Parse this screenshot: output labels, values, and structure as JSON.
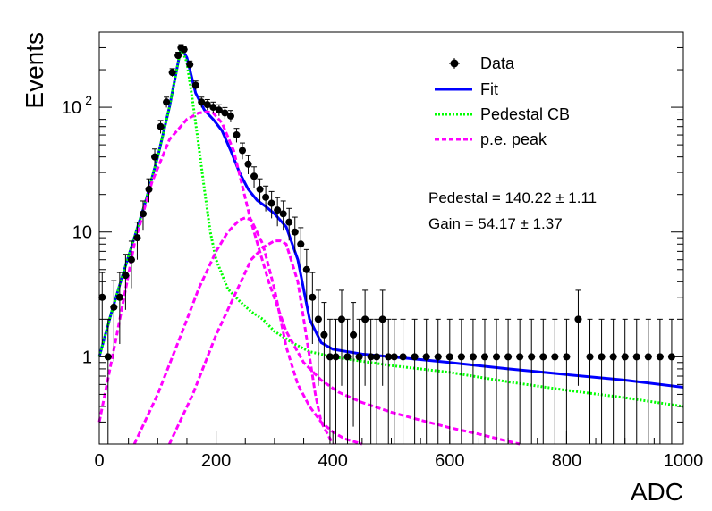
{
  "chart_data": {
    "type": "scatter",
    "title": "",
    "xlabel": "ADC",
    "ylabel": "Events",
    "xlim": [
      0,
      1000
    ],
    "ylim": [
      0.2,
      400
    ],
    "yscale": "log",
    "x_ticks": [
      "0",
      "200",
      "400",
      "600",
      "800",
      "1000"
    ],
    "y_ticks": [
      {
        "value": 1,
        "label": "1"
      },
      {
        "value": 10,
        "label": "10"
      },
      {
        "value": 100,
        "label": "10",
        "exponent": "2"
      }
    ],
    "legend": {
      "placement": "top-right",
      "entries": [
        {
          "label": "Data",
          "style": "marker",
          "color": "#000000"
        },
        {
          "label": "Fit",
          "style": "solid",
          "color": "#0000ff"
        },
        {
          "label": "Pedestal CB",
          "style": "dotted",
          "color": "#00ff00"
        },
        {
          "label": "p.e. peak",
          "style": "dashed",
          "color": "#ff00ff"
        }
      ]
    },
    "annotations": [
      {
        "name": "Pedestal",
        "text": "Pedestal = 140.22 ± 1.11"
      },
      {
        "name": "Gain",
        "text": "Gain = 54.17 ± 1.37"
      }
    ],
    "series": [
      {
        "name": "Data",
        "marker": "circle",
        "color": "#000000",
        "x": [
          5,
          15,
          25,
          35,
          45,
          55,
          65,
          75,
          85,
          95,
          105,
          115,
          125,
          135,
          140,
          145,
          155,
          165,
          175,
          185,
          195,
          205,
          215,
          225,
          235,
          245,
          255,
          265,
          275,
          285,
          295,
          305,
          315,
          325,
          335,
          345,
          355,
          365,
          375,
          385,
          395,
          405,
          415,
          425,
          435,
          445,
          455,
          465,
          475,
          485,
          495,
          505,
          520,
          540,
          560,
          580,
          600,
          620,
          640,
          660,
          680,
          700,
          720,
          740,
          760,
          780,
          800,
          820,
          840,
          860,
          880,
          900,
          920,
          940,
          960,
          980
        ],
        "y": [
          3,
          1,
          2.5,
          3,
          4.5,
          6,
          9,
          14,
          22,
          40,
          70,
          110,
          190,
          260,
          300,
          290,
          220,
          150,
          110,
          105,
          100,
          95,
          90,
          85,
          60,
          45,
          35,
          28,
          22,
          19,
          17,
          15,
          14,
          12,
          10,
          8,
          5,
          3,
          2,
          1.5,
          1,
          1,
          2,
          1,
          1.5,
          1,
          2,
          1,
          1,
          2,
          1,
          1,
          1,
          1,
          1,
          1,
          1,
          1,
          1,
          1,
          1,
          1,
          1,
          1,
          1,
          1,
          1,
          2,
          1,
          1,
          1,
          1,
          1,
          1,
          1,
          1
        ]
      },
      {
        "name": "Fit",
        "style": "solid",
        "color": "#0000ff",
        "x": [
          0,
          20,
          40,
          60,
          80,
          100,
          120,
          135,
          140,
          150,
          165,
          180,
          195,
          210,
          225,
          240,
          255,
          270,
          285,
          300,
          320,
          340,
          360,
          380,
          400,
          450,
          500,
          550,
          600,
          700,
          800,
          900,
          1000
        ],
        "y": [
          1,
          2.2,
          4.5,
          9,
          18,
          40,
          100,
          230,
          300,
          250,
          130,
          95,
          80,
          65,
          45,
          30,
          22,
          18,
          16,
          14,
          11,
          6,
          2,
          1.3,
          1.15,
          1.05,
          1,
          0.95,
          0.9,
          0.8,
          0.72,
          0.65,
          0.57
        ]
      },
      {
        "name": "Pedestal CB",
        "style": "dotted",
        "color": "#00ff00",
        "x": [
          0,
          20,
          40,
          60,
          80,
          100,
          120,
          135,
          140,
          150,
          160,
          170,
          180,
          190,
          200,
          220,
          240,
          260,
          280,
          300,
          330,
          360,
          400,
          450,
          500,
          600,
          700,
          800,
          900,
          1000
        ],
        "y": [
          1,
          2.2,
          4.5,
          9,
          18,
          40,
          100,
          230,
          300,
          230,
          110,
          50,
          22,
          10,
          6,
          3.5,
          2.8,
          2.3,
          2,
          1.6,
          1.3,
          1.1,
          1,
          0.92,
          0.85,
          0.75,
          0.63,
          0.54,
          0.47,
          0.4
        ]
      },
      {
        "name": "p.e. peak 1",
        "style": "dashed",
        "color": "#ff00ff",
        "x": [
          0,
          30,
          60,
          90,
          120,
          150,
          170,
          185,
          195,
          210,
          230,
          260,
          290,
          320,
          350,
          380,
          410,
          450,
          500,
          550,
          600,
          650,
          700,
          720
        ],
        "y": [
          0.3,
          1.5,
          8,
          25,
          55,
          80,
          90,
          92,
          90,
          75,
          45,
          12,
          4,
          1.6,
          0.9,
          0.65,
          0.52,
          0.43,
          0.36,
          0.31,
          0.27,
          0.24,
          0.21,
          0.2
        ]
      },
      {
        "name": "p.e. peak 2",
        "style": "dashed",
        "color": "#ff00ff",
        "x": [
          60,
          100,
          140,
          170,
          200,
          220,
          240,
          250,
          260,
          280,
          300,
          320,
          340,
          360,
          380,
          400,
          420,
          450
        ],
        "y": [
          0.2,
          0.5,
          1.5,
          3.5,
          7,
          10,
          12.5,
          13,
          12.5,
          8,
          3.5,
          1.2,
          0.6,
          0.4,
          0.3,
          0.25,
          0.22,
          0.2
        ]
      },
      {
        "name": "p.e. peak 3",
        "style": "dashed",
        "color": "#ff00ff",
        "x": [
          120,
          160,
          200,
          230,
          260,
          280,
          300,
          310,
          320,
          340,
          360,
          370,
          380,
          400
        ],
        "y": [
          0.2,
          0.5,
          1.5,
          3,
          6,
          7.5,
          8.5,
          8.5,
          8,
          4,
          1,
          0.5,
          0.3,
          0.2
        ]
      }
    ]
  }
}
